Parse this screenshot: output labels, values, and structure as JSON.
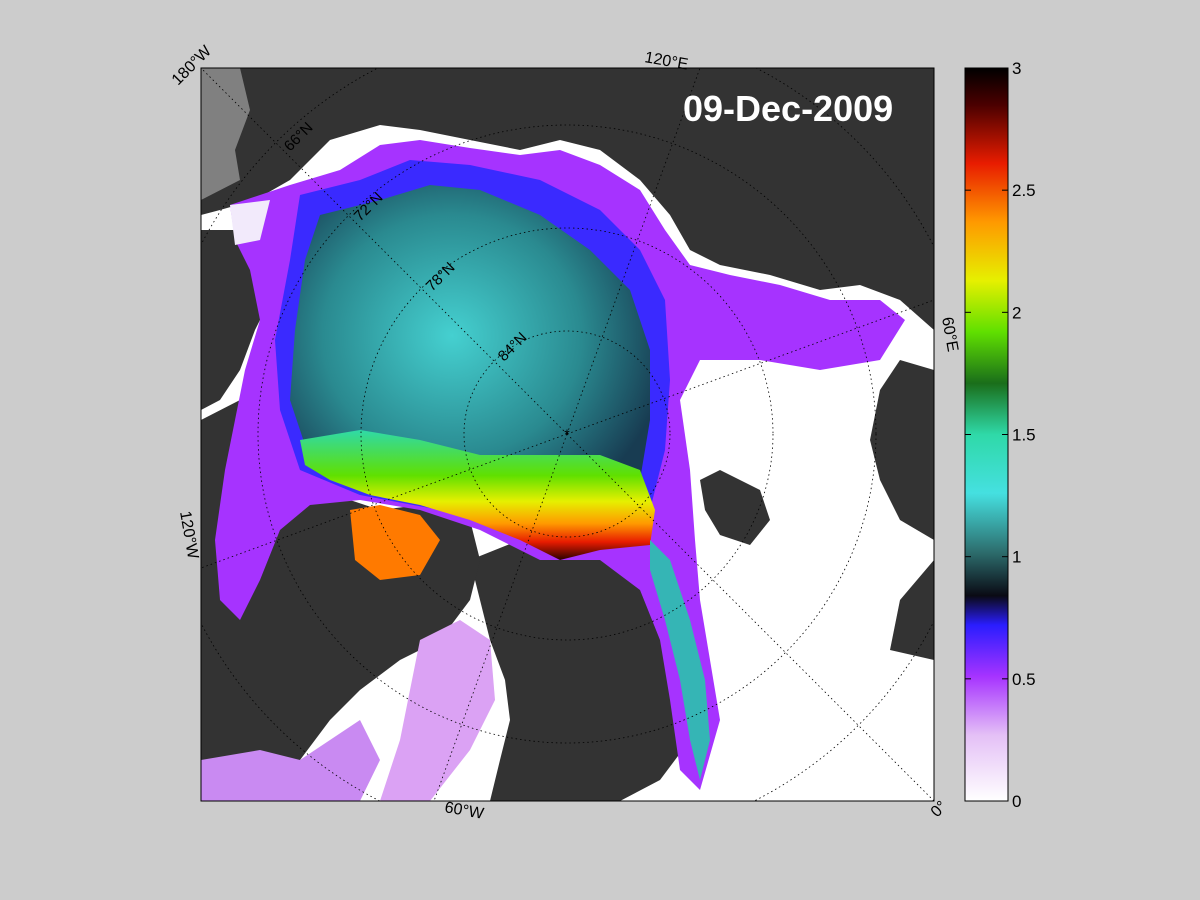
{
  "map": {
    "date": "09-Dec-2009",
    "longitude_labels": {
      "top_left": "180°W",
      "top": "120°E",
      "right": "60°E",
      "left": "120°W",
      "bottom": "60°W",
      "bottom_right": "0°"
    },
    "latitude_labels": [
      "66°N",
      "72°N",
      "78°N",
      "84°N"
    ],
    "colors": {
      "land": "#333333",
      "figure_background": "#cccccc",
      "open_water": "#ffffff"
    }
  },
  "colorbar": {
    "ticks": [
      "0",
      "0.5",
      "1",
      "1.5",
      "2",
      "2.5",
      "3"
    ],
    "range": [
      0,
      3
    ],
    "colors": [
      "#ffffff",
      "#dba2f4",
      "#a633ff",
      "#2a1dff",
      "#0a0a14",
      "#2d6e6e",
      "#45e0e0",
      "#2fd9a8",
      "#1a6e1a",
      "#60e000",
      "#e6f000",
      "#ff9900",
      "#e81c00",
      "#4a0000",
      "#000000"
    ]
  }
}
